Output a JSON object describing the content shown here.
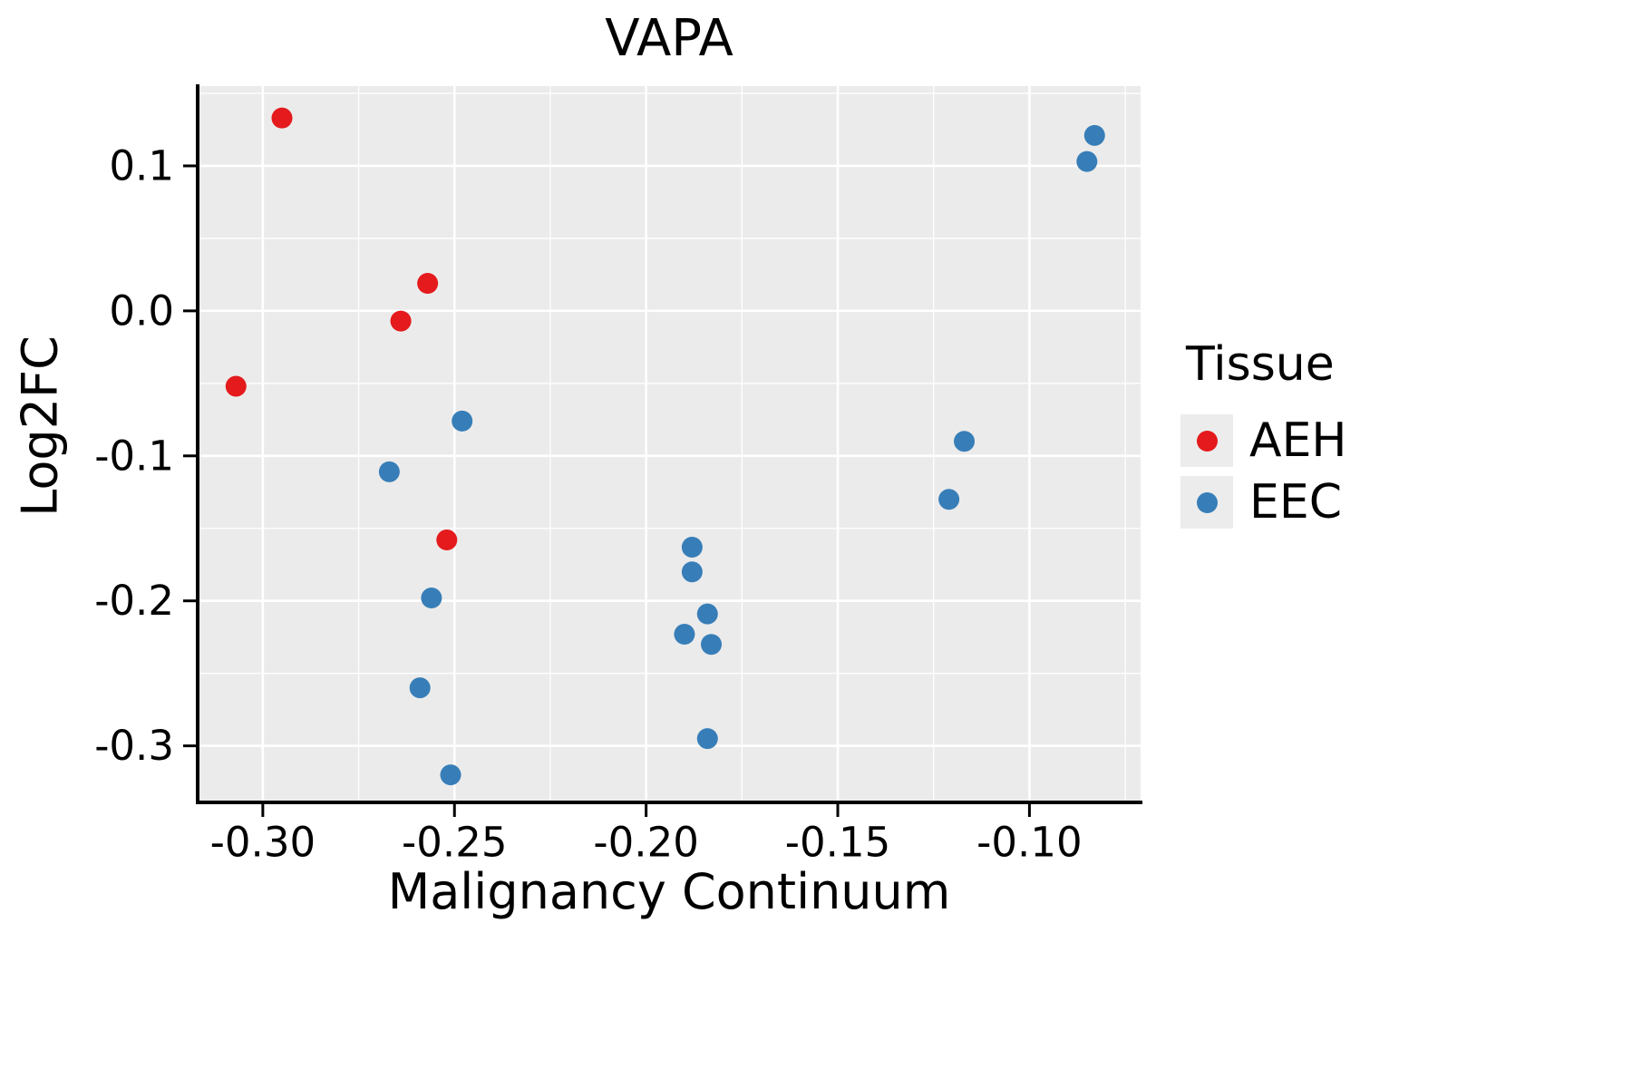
{
  "chart_data": {
    "type": "scatter",
    "title": "VAPA",
    "xlabel": "Malignancy Continuum",
    "ylabel": "Log2FC",
    "legend_title": "Tissue",
    "legend_position": "right",
    "grid": "major and minor white gridlines on grey panel",
    "xlim": [
      -0.317,
      -0.071
    ],
    "ylim": [
      -0.339,
      0.155
    ],
    "x_ticks": [
      {
        "value": -0.3,
        "label": "-0.30"
      },
      {
        "value": -0.25,
        "label": "-0.25"
      },
      {
        "value": -0.2,
        "label": "-0.20"
      },
      {
        "value": -0.15,
        "label": "-0.15"
      },
      {
        "value": -0.1,
        "label": "-0.10"
      }
    ],
    "y_ticks": [
      {
        "value": 0.1,
        "label": "0.1"
      },
      {
        "value": 0.0,
        "label": "0.0"
      },
      {
        "value": -0.1,
        "label": "-0.1"
      },
      {
        "value": -0.2,
        "label": "-0.2"
      },
      {
        "value": -0.3,
        "label": "-0.3"
      }
    ],
    "colors": {
      "panel_bg": "#EBEBEB",
      "grid": "#FFFFFF",
      "axis": "#000000",
      "aeh": "#E41A1C",
      "eec": "#377EB8"
    },
    "series": [
      {
        "name": "AEH",
        "color": "#E41A1C",
        "points": [
          [
            -0.295,
            0.133
          ],
          [
            -0.257,
            0.019
          ],
          [
            -0.264,
            -0.007
          ],
          [
            -0.307,
            -0.052
          ],
          [
            -0.252,
            -0.158
          ]
        ]
      },
      {
        "name": "EEC",
        "color": "#377EB8",
        "points": [
          [
            -0.083,
            0.121
          ],
          [
            -0.085,
            0.103
          ],
          [
            -0.248,
            -0.076
          ],
          [
            -0.267,
            -0.111
          ],
          [
            -0.117,
            -0.09
          ],
          [
            -0.121,
            -0.13
          ],
          [
            -0.188,
            -0.163
          ],
          [
            -0.188,
            -0.18
          ],
          [
            -0.184,
            -0.209
          ],
          [
            -0.19,
            -0.223
          ],
          [
            -0.183,
            -0.23
          ],
          [
            -0.256,
            -0.198
          ],
          [
            -0.259,
            -0.26
          ],
          [
            -0.184,
            -0.295
          ],
          [
            -0.251,
            -0.32
          ]
        ]
      }
    ]
  }
}
